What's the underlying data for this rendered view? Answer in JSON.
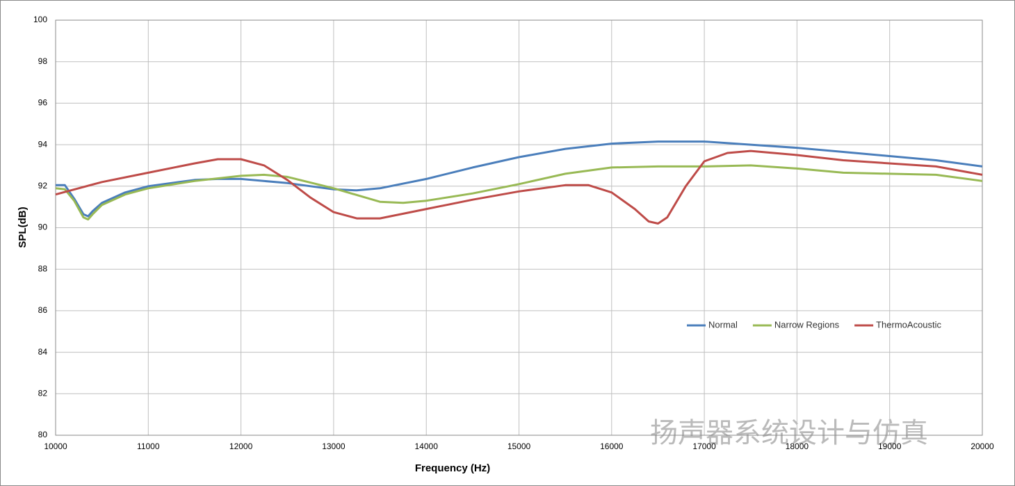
{
  "chart_data": {
    "type": "line",
    "x_label": "Frequency (Hz)",
    "y_label": "SPL(dB)",
    "watermark": "扬声器系统设计与仿真",
    "xlim": [
      10000,
      20000
    ],
    "xticks": [
      10000,
      11000,
      12000,
      13000,
      14000,
      15000,
      16000,
      17000,
      18000,
      19000,
      20000
    ],
    "ylim": [
      80,
      100
    ],
    "yticks": [
      80,
      82,
      84,
      86,
      88,
      90,
      92,
      94,
      96,
      98,
      100
    ],
    "grid": true,
    "legend": "right",
    "series": [
      {
        "name": "Normal",
        "color": "#4a7ebb",
        "x": [
          10000,
          10100,
          10200,
          10300,
          10350,
          10400,
          10500,
          10750,
          11000,
          11500,
          11750,
          12000,
          12500,
          13000,
          13250,
          13500,
          14000,
          14500,
          15000,
          15500,
          16000,
          16500,
          17000,
          17500,
          18000,
          18500,
          19000,
          19500,
          20000
        ],
        "values": [
          92.05,
          92.05,
          91.4,
          90.65,
          90.55,
          90.8,
          91.2,
          91.7,
          92.0,
          92.3,
          92.35,
          92.35,
          92.15,
          91.85,
          91.8,
          91.9,
          92.35,
          92.9,
          93.4,
          93.8,
          94.05,
          94.15,
          94.15,
          94.0,
          93.85,
          93.65,
          93.45,
          93.25,
          92.95
        ]
      },
      {
        "name": "Narrow Regions",
        "color": "#98b954",
        "x": [
          10000,
          10100,
          10200,
          10300,
          10350,
          10400,
          10500,
          10750,
          11000,
          11500,
          12000,
          12250,
          12500,
          13000,
          13500,
          13750,
          14000,
          14500,
          15000,
          15500,
          16000,
          16500,
          17000,
          17500,
          18000,
          18500,
          19000,
          19500,
          20000
        ],
        "values": [
          91.9,
          91.85,
          91.3,
          90.5,
          90.4,
          90.65,
          91.1,
          91.6,
          91.9,
          92.25,
          92.5,
          92.55,
          92.45,
          91.9,
          91.25,
          91.2,
          91.3,
          91.65,
          92.1,
          92.6,
          92.9,
          92.95,
          92.95,
          93.0,
          92.85,
          92.65,
          92.6,
          92.55,
          92.25
        ]
      },
      {
        "name": "ThermoAcoustic",
        "color": "#be4b48",
        "x": [
          10000,
          10500,
          11000,
          11500,
          11750,
          12000,
          12250,
          12500,
          12750,
          13000,
          13250,
          13500,
          14000,
          14500,
          15000,
          15500,
          15750,
          16000,
          16250,
          16400,
          16500,
          16600,
          16800,
          17000,
          17250,
          17500,
          18000,
          18500,
          19000,
          19500,
          20000
        ],
        "values": [
          91.6,
          92.2,
          92.65,
          93.1,
          93.3,
          93.3,
          93.0,
          92.3,
          91.45,
          90.75,
          90.45,
          90.45,
          90.9,
          91.35,
          91.75,
          92.05,
          92.05,
          91.7,
          90.9,
          90.3,
          90.2,
          90.5,
          92.0,
          93.2,
          93.6,
          93.7,
          93.5,
          93.25,
          93.1,
          92.95,
          92.55
        ]
      }
    ]
  }
}
